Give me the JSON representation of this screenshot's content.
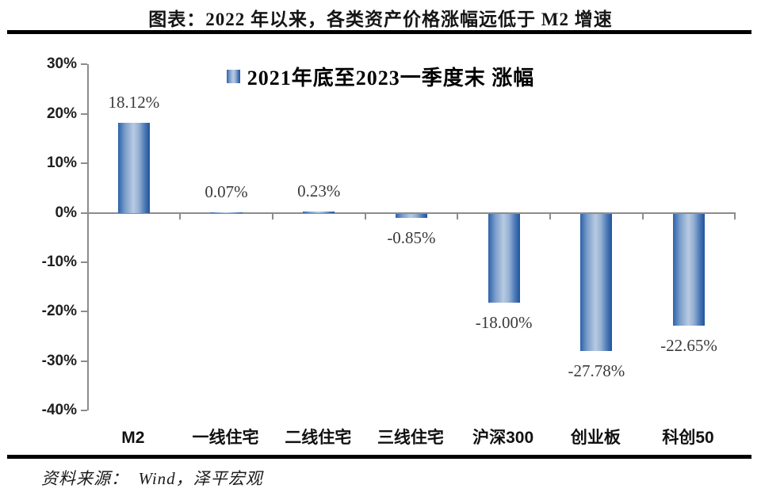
{
  "header": {
    "title": "图表：2022 年以来，各类资产价格涨幅远低于 M2 增速"
  },
  "legend": {
    "label": "2021年底至2023一季度末 涨幅"
  },
  "footer": {
    "source": "资料来源：  Wind，泽平宏观"
  },
  "colors": {
    "bar_edge": "#2c62aa",
    "bar_highlight": "#b8cae1",
    "axis": "#8c8c8c",
    "rule": "#000000",
    "value_label": "#3a3a3a"
  },
  "chart_data": {
    "type": "bar",
    "title": "图表：2022 年以来，各类资产价格涨幅远低于 M2 增速",
    "legend_entries": [
      "2021年底至2023一季度末 涨幅"
    ],
    "legend_position": "top-center",
    "categories": [
      "M2",
      "一线住宅",
      "二线住宅",
      "三线住宅",
      "沪深300",
      "创业板",
      "科创50"
    ],
    "values": [
      18.12,
      0.07,
      0.23,
      -0.85,
      -18.0,
      -27.78,
      -22.65
    ],
    "value_labels": [
      "18.12%",
      "0.07%",
      "0.23%",
      "-0.85%",
      "-18.00%",
      "-27.78%",
      "-22.65%"
    ],
    "xlabel": "",
    "ylabel": "",
    "ylim": [
      -40,
      30
    ],
    "ytick_step": 10,
    "ytick_labels": [
      "30%",
      "20%",
      "10%",
      "0%",
      "-10%",
      "-20%",
      "-30%",
      "-40%"
    ],
    "grid": false,
    "source": "资料来源：  Wind，泽平宏观"
  }
}
